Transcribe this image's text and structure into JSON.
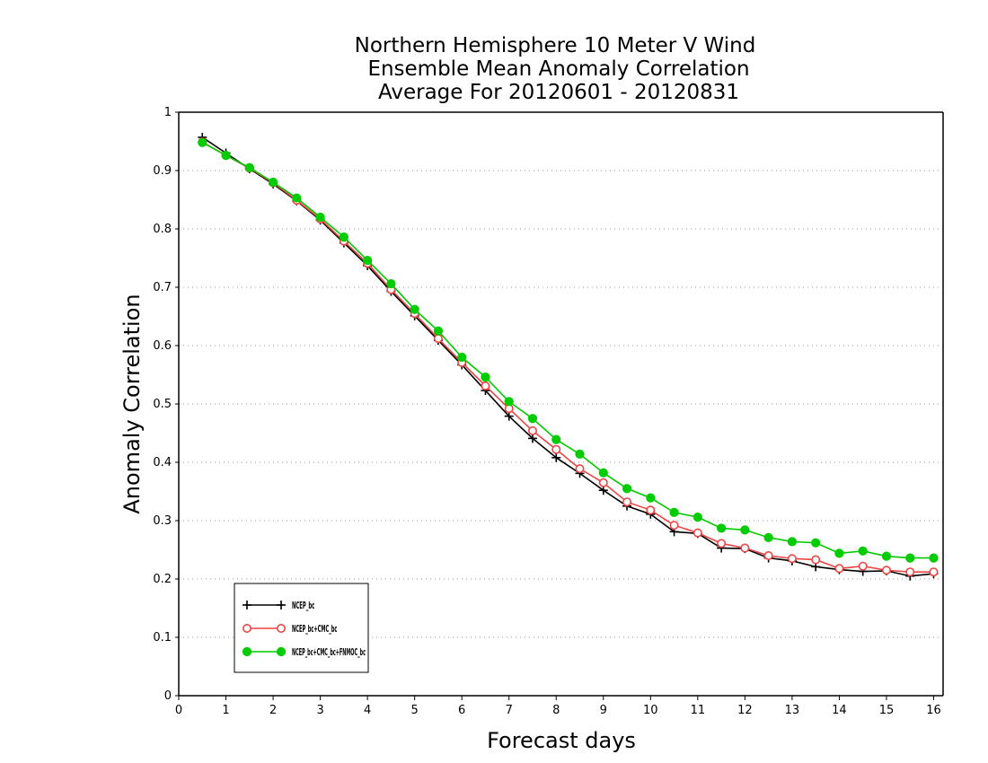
{
  "chart_data": {
    "type": "line",
    "title": [
      "Northern Hemisphere 10 Meter V Wind",
      "Ensemble Mean Anomaly Correlation",
      "Average For 20120601 - 20120831"
    ],
    "xlabel": "Forecast days",
    "ylabel": "Anomaly Correlation",
    "xlim": [
      0,
      16.2
    ],
    "ylim": [
      0,
      1
    ],
    "xticks": [
      "0",
      "1",
      "2",
      "3",
      "4",
      "5",
      "6",
      "7",
      "8",
      "9",
      "10",
      "11",
      "12",
      "13",
      "14",
      "15",
      "16"
    ],
    "yticks": [
      "0",
      "0.1",
      "0.2",
      "0.3",
      "0.4",
      "0.5",
      "0.6",
      "0.7",
      "0.8",
      "0.9",
      "1"
    ],
    "grid": true,
    "legend_position": "bottom-left",
    "x": [
      0.5,
      1,
      1.5,
      2,
      2.5,
      3,
      3.5,
      4,
      4.5,
      5,
      5.5,
      6,
      6.5,
      7,
      7.5,
      8,
      8.5,
      9,
      9.5,
      10,
      10.5,
      11,
      11.5,
      12,
      12.5,
      13,
      13.5,
      14,
      14.5,
      15,
      15.5,
      16
    ],
    "series": [
      {
        "name": "NCEP_bc",
        "color": "#000000",
        "marker": "plus",
        "values": [
          0.957,
          0.93,
          0.903,
          0.877,
          0.848,
          0.815,
          0.776,
          0.737,
          0.693,
          0.651,
          0.609,
          0.567,
          0.523,
          0.479,
          0.441,
          0.408,
          0.381,
          0.352,
          0.325,
          0.311,
          0.281,
          0.278,
          0.253,
          0.252,
          0.236,
          0.231,
          0.221,
          0.216,
          0.213,
          0.214,
          0.205,
          0.209
        ]
      },
      {
        "name": "NCEP_bc+CMC_bc",
        "color": "#ee4444",
        "marker": "open-circle",
        "values": [
          0.949,
          0.926,
          0.904,
          0.879,
          0.849,
          0.817,
          0.779,
          0.741,
          0.696,
          0.655,
          0.612,
          0.571,
          0.531,
          0.492,
          0.454,
          0.422,
          0.389,
          0.365,
          0.332,
          0.318,
          0.292,
          0.279,
          0.261,
          0.253,
          0.24,
          0.235,
          0.233,
          0.218,
          0.222,
          0.215,
          0.212,
          0.212
        ]
      },
      {
        "name": "NCEP_bc+CMC_bc+FNMOC_bc",
        "color": "#00cc00",
        "marker": "filled-circle",
        "values": [
          0.948,
          0.926,
          0.905,
          0.88,
          0.853,
          0.82,
          0.786,
          0.746,
          0.706,
          0.662,
          0.625,
          0.58,
          0.546,
          0.504,
          0.475,
          0.439,
          0.414,
          0.382,
          0.355,
          0.339,
          0.314,
          0.306,
          0.287,
          0.284,
          0.271,
          0.264,
          0.262,
          0.244,
          0.248,
          0.239,
          0.236,
          0.236
        ]
      }
    ]
  }
}
